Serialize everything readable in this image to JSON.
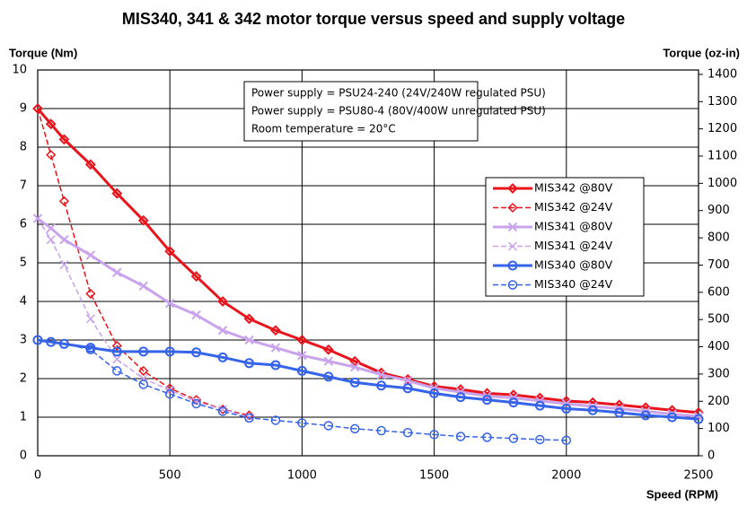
{
  "chart_data": {
    "type": "line",
    "title": "MIS340, 341 & 342 motor torque versus speed and supply voltage",
    "y_label": "Torque (Nm)",
    "y2_label": "Torque (oz-in)",
    "x_label": "Speed (RPM)",
    "annotations": [
      "Power supply = PSU24-240 (24V/240W regulated PSU)",
      "Power supply = PSU80-4 (80V/400W unregulated PSU)",
      "Room temperature = 20°C"
    ],
    "xlim": [
      0,
      2500
    ],
    "xticks": [
      0,
      500,
      1000,
      1500,
      2000,
      2500
    ],
    "ylim": [
      0,
      10
    ],
    "yticks": [
      0,
      1,
      2,
      3,
      4,
      5,
      6,
      7,
      8,
      9,
      10
    ],
    "y2lim": [
      0,
      1416.12
    ],
    "y2ticks": [
      0,
      100,
      200,
      300,
      400,
      500,
      600,
      700,
      800,
      900,
      1000,
      1100,
      1200,
      1300,
      1400
    ],
    "grid": true,
    "legend_position": "right",
    "series": [
      {
        "name": "MIS342 @80V",
        "color": "#e8141c",
        "marker": "diamond",
        "dashed": false,
        "x": [
          0,
          50,
          100,
          200,
          300,
          400,
          500,
          600,
          700,
          800,
          900,
          1000,
          1100,
          1200,
          1300,
          1400,
          1500,
          1600,
          1700,
          1800,
          1900,
          2000,
          2100,
          2200,
          2300,
          2400,
          2500
        ],
        "values": [
          9.0,
          8.6,
          8.2,
          7.55,
          6.8,
          6.1,
          5.3,
          4.65,
          4.0,
          3.55,
          3.25,
          3.0,
          2.75,
          2.45,
          2.15,
          1.98,
          1.8,
          1.72,
          1.62,
          1.58,
          1.5,
          1.42,
          1.38,
          1.32,
          1.25,
          1.18,
          1.12
        ]
      },
      {
        "name": "MIS342 @24V",
        "color": "#e8141c",
        "marker": "diamond",
        "dashed": true,
        "x": [
          0,
          50,
          100,
          200,
          300,
          400,
          500,
          600,
          700,
          800
        ],
        "values": [
          9.0,
          7.8,
          6.6,
          4.2,
          2.85,
          2.2,
          1.75,
          1.45,
          1.2,
          1.05
        ]
      },
      {
        "name": "MIS341 @80V",
        "color": "#c9a3ec",
        "marker": "x",
        "dashed": false,
        "x": [
          0,
          50,
          100,
          200,
          300,
          400,
          500,
          600,
          700,
          800,
          900,
          1000,
          1100,
          1200,
          1300,
          1400,
          1500,
          1600,
          1700,
          1800,
          1900,
          2000,
          2100,
          2200,
          2300,
          2400,
          2500
        ],
        "values": [
          6.15,
          5.9,
          5.6,
          5.2,
          4.75,
          4.4,
          3.95,
          3.65,
          3.25,
          3.0,
          2.8,
          2.6,
          2.45,
          2.3,
          2.1,
          1.95,
          1.75,
          1.65,
          1.55,
          1.5,
          1.42,
          1.35,
          1.28,
          1.22,
          1.15,
          1.08,
          1.02
        ]
      },
      {
        "name": "MIS341 @24V",
        "color": "#c9a3ec",
        "marker": "x",
        "dashed": true,
        "x": [
          0,
          50,
          100,
          200,
          300,
          400,
          500,
          600,
          700,
          800
        ],
        "values": [
          6.15,
          5.6,
          4.95,
          3.55,
          2.5,
          2.0,
          1.7,
          1.4,
          1.2,
          1.0
        ]
      },
      {
        "name": "MIS340 @80V",
        "color": "#3563e9",
        "marker": "circle",
        "dashed": false,
        "x": [
          0,
          50,
          100,
          200,
          300,
          400,
          500,
          600,
          700,
          800,
          900,
          1000,
          1100,
          1200,
          1300,
          1400,
          1500,
          1600,
          1700,
          1800,
          1900,
          2000,
          2100,
          2200,
          2300,
          2400,
          2500
        ],
        "values": [
          3.0,
          2.95,
          2.9,
          2.8,
          2.7,
          2.7,
          2.7,
          2.68,
          2.55,
          2.4,
          2.35,
          2.2,
          2.05,
          1.9,
          1.82,
          1.75,
          1.62,
          1.52,
          1.45,
          1.38,
          1.3,
          1.22,
          1.18,
          1.12,
          1.05,
          1.0,
          0.95
        ]
      },
      {
        "name": "MIS340 @24V",
        "color": "#3563e9",
        "marker": "circle",
        "dashed": true,
        "x": [
          0,
          50,
          100,
          200,
          300,
          400,
          500,
          600,
          700,
          800,
          900,
          1000,
          1100,
          1200,
          1300,
          1400,
          1500,
          1600,
          1700,
          1800,
          1900,
          2000
        ],
        "values": [
          3.0,
          2.95,
          2.9,
          2.75,
          2.2,
          1.85,
          1.6,
          1.35,
          1.15,
          0.98,
          0.92,
          0.85,
          0.78,
          0.7,
          0.65,
          0.6,
          0.55,
          0.5,
          0.48,
          0.45,
          0.42,
          0.4
        ]
      }
    ]
  }
}
